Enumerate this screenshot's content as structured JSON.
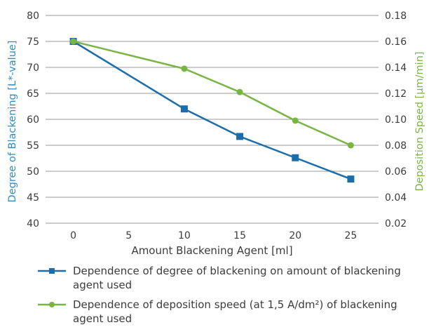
{
  "chart_data": {
    "type": "line",
    "x": [
      0,
      5,
      10,
      15,
      20,
      25
    ],
    "xlabel": "Amount Blackening Agent [ml]",
    "ylabel_left": "Degree of Blackening [L*-value]",
    "ylabel_right": "Deposition Speed [µm/min]",
    "ylim_left": [
      40,
      80
    ],
    "ylim_right": [
      0.02,
      0.18
    ],
    "xlim": [
      -2.5,
      27.5
    ],
    "x_ticks": [
      "0",
      "5",
      "10",
      "15",
      "20",
      "25"
    ],
    "y_ticks_left": [
      "40",
      "45",
      "50",
      "55",
      "60",
      "65",
      "70",
      "75",
      "80"
    ],
    "y_ticks_right": [
      "0.02",
      "0.04",
      "0.06",
      "0.08",
      "0.10",
      "0.12",
      "0.14",
      "0.16",
      "0.18"
    ],
    "grid": "horizontal",
    "legend_placement": "bottom",
    "series": [
      {
        "name": "Dependence of degree of blackening on amount of blackening agent used",
        "axis": "left",
        "marker": "square",
        "color": "#1b6eab",
        "x": [
          0,
          10,
          15,
          20,
          25
        ],
        "values": [
          75,
          62,
          56.7,
          52.6,
          48.5
        ]
      },
      {
        "name": "Dependence of deposition speed (at 1,5 A/dm²) of blackening agent used",
        "axis": "right",
        "marker": "circle",
        "color": "#78b542",
        "x": [
          0,
          10,
          15,
          20,
          25
        ],
        "values": [
          0.16,
          0.139,
          0.121,
          0.099,
          0.08
        ]
      }
    ]
  },
  "colors": {
    "left_axis_label": "#2d8bc9",
    "right_axis_label": "#78b542",
    "grid": "#9a9a9a"
  }
}
